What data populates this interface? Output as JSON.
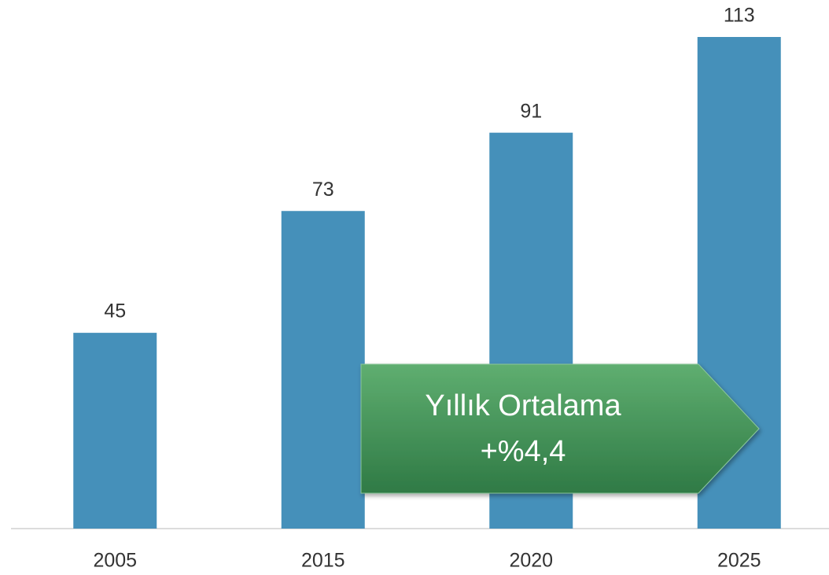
{
  "chart_data": {
    "type": "bar",
    "categories": [
      "2005",
      "2015",
      "2020",
      "2025"
    ],
    "values": [
      45,
      73,
      91,
      113
    ],
    "color": "#4590ba",
    "annotations": [
      "Yıllık Ortalama",
      "+%4,4"
    ]
  }
}
